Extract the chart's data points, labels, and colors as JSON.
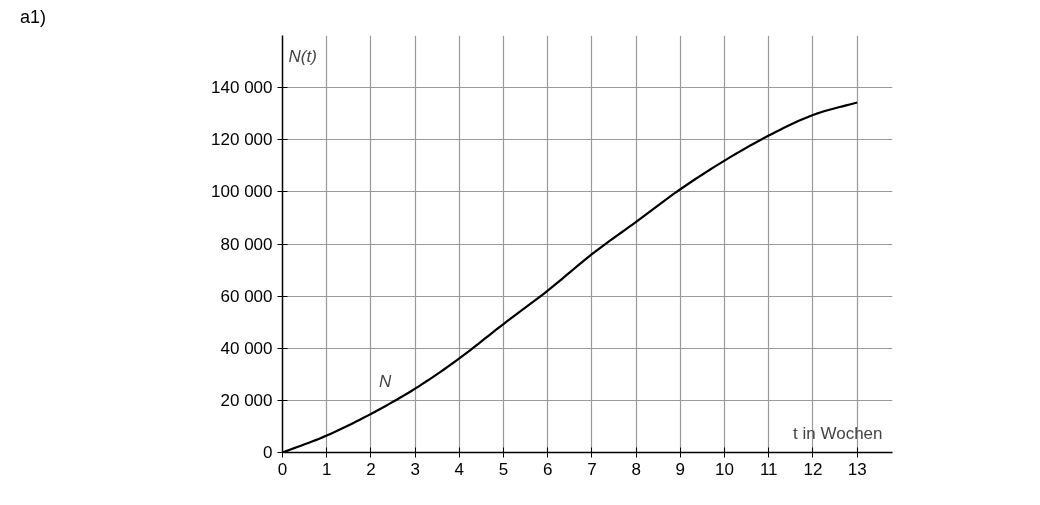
{
  "chart_data": {
    "type": "line",
    "xlabel": "t in Wochen",
    "ylabel": "N(t)",
    "annotations": [
      "a1)"
    ],
    "x": [
      0,
      1,
      2,
      3,
      4,
      5,
      6,
      7,
      8,
      9,
      10,
      11,
      12,
      13
    ],
    "series": [
      {
        "name": "N",
        "color": "#000000",
        "values": [
          0,
          6500,
          14800,
          24500,
          36100,
          49300,
          62100,
          76100,
          88500,
          101000,
          112000,
          121600,
          129500,
          134300
        ]
      }
    ],
    "xlim": [
      0,
      13.8
    ],
    "ylim": [
      0,
      160000
    ],
    "xticks": [
      0,
      1,
      2,
      3,
      4,
      5,
      6,
      7,
      8,
      9,
      10,
      11,
      12,
      13
    ],
    "yticks": [
      0,
      {
        "value": 20000,
        "label": "20 000"
      },
      {
        "value": 40000,
        "label": "40 000"
      },
      {
        "value": 60000,
        "label": "60 000"
      },
      {
        "value": 80000,
        "label": "80 000"
      },
      {
        "value": 100000,
        "label": "100 000"
      },
      {
        "value": 120000,
        "label": "120 000"
      },
      {
        "value": 140000,
        "label": "140 000"
      }
    ],
    "grid": true,
    "legend": false,
    "marker": "none",
    "line_style": "solid"
  }
}
